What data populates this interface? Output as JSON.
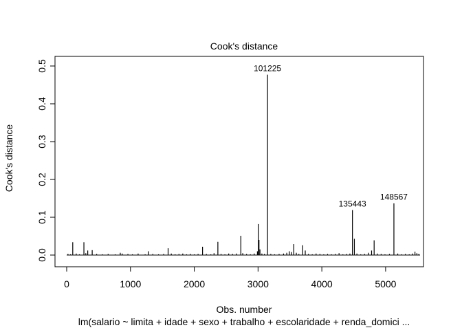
{
  "chart_data": {
    "type": "line",
    "title": "Cook's distance",
    "xlabel": "Obs. number",
    "ylabel": "Cook's distance",
    "subtitle": "lm(salario ~ limita + idade + sexo + trabalho + escolaridade + renda_domici ...",
    "xlim": [
      0,
      5540
    ],
    "ylim": [
      0,
      0.5
    ],
    "x_ticks": [
      0,
      1000,
      2000,
      3000,
      4000,
      5000
    ],
    "y_ticks": [
      0.0,
      0.1,
      0.2,
      0.3,
      0.4,
      0.5
    ],
    "grid": false,
    "style": "vertical-spikes",
    "color": "#000000",
    "spikes": [
      {
        "x": 20,
        "y": 0.003
      },
      {
        "x": 60,
        "y": 0.002
      },
      {
        "x": 95,
        "y": 0.034
      },
      {
        "x": 150,
        "y": 0.004
      },
      {
        "x": 200,
        "y": 0.002
      },
      {
        "x": 270,
        "y": 0.034
      },
      {
        "x": 300,
        "y": 0.005
      },
      {
        "x": 330,
        "y": 0.012
      },
      {
        "x": 400,
        "y": 0.013
      },
      {
        "x": 470,
        "y": 0.003
      },
      {
        "x": 560,
        "y": 0.002
      },
      {
        "x": 650,
        "y": 0.003
      },
      {
        "x": 760,
        "y": 0.002
      },
      {
        "x": 840,
        "y": 0.006
      },
      {
        "x": 870,
        "y": 0.004
      },
      {
        "x": 960,
        "y": 0.003
      },
      {
        "x": 1030,
        "y": 0.002
      },
      {
        "x": 1120,
        "y": 0.004
      },
      {
        "x": 1230,
        "y": 0.002
      },
      {
        "x": 1280,
        "y": 0.01
      },
      {
        "x": 1350,
        "y": 0.003
      },
      {
        "x": 1440,
        "y": 0.002
      },
      {
        "x": 1520,
        "y": 0.003
      },
      {
        "x": 1590,
        "y": 0.018
      },
      {
        "x": 1640,
        "y": 0.004
      },
      {
        "x": 1700,
        "y": 0.002
      },
      {
        "x": 1760,
        "y": 0.003
      },
      {
        "x": 1820,
        "y": 0.004
      },
      {
        "x": 1880,
        "y": 0.002
      },
      {
        "x": 1940,
        "y": 0.003
      },
      {
        "x": 2000,
        "y": 0.002
      },
      {
        "x": 2060,
        "y": 0.003
      },
      {
        "x": 2130,
        "y": 0.022
      },
      {
        "x": 2190,
        "y": 0.003
      },
      {
        "x": 2260,
        "y": 0.002
      },
      {
        "x": 2310,
        "y": 0.005
      },
      {
        "x": 2370,
        "y": 0.035
      },
      {
        "x": 2420,
        "y": 0.003
      },
      {
        "x": 2480,
        "y": 0.002
      },
      {
        "x": 2540,
        "y": 0.004
      },
      {
        "x": 2600,
        "y": 0.003
      },
      {
        "x": 2660,
        "y": 0.004
      },
      {
        "x": 2730,
        "y": 0.051
      },
      {
        "x": 2760,
        "y": 0.005
      },
      {
        "x": 2820,
        "y": 0.003
      },
      {
        "x": 2880,
        "y": 0.002
      },
      {
        "x": 2940,
        "y": 0.004
      },
      {
        "x": 2990,
        "y": 0.01
      },
      {
        "x": 3005,
        "y": 0.082
      },
      {
        "x": 3015,
        "y": 0.04
      },
      {
        "x": 3030,
        "y": 0.015
      },
      {
        "x": 3060,
        "y": 0.004
      },
      {
        "x": 3100,
        "y": 0.003
      },
      {
        "x": 3148,
        "y": 0.477
      },
      {
        "x": 3200,
        "y": 0.003
      },
      {
        "x": 3260,
        "y": 0.002
      },
      {
        "x": 3330,
        "y": 0.003
      },
      {
        "x": 3400,
        "y": 0.004
      },
      {
        "x": 3450,
        "y": 0.006
      },
      {
        "x": 3490,
        "y": 0.01
      },
      {
        "x": 3520,
        "y": 0.008
      },
      {
        "x": 3560,
        "y": 0.029
      },
      {
        "x": 3600,
        "y": 0.006
      },
      {
        "x": 3640,
        "y": 0.003
      },
      {
        "x": 3700,
        "y": 0.026
      },
      {
        "x": 3740,
        "y": 0.012
      },
      {
        "x": 3790,
        "y": 0.003
      },
      {
        "x": 3850,
        "y": 0.002
      },
      {
        "x": 3910,
        "y": 0.004
      },
      {
        "x": 3970,
        "y": 0.003
      },
      {
        "x": 4030,
        "y": 0.002
      },
      {
        "x": 4090,
        "y": 0.003
      },
      {
        "x": 4150,
        "y": 0.002
      },
      {
        "x": 4210,
        "y": 0.003
      },
      {
        "x": 4270,
        "y": 0.005
      },
      {
        "x": 4330,
        "y": 0.002
      },
      {
        "x": 4390,
        "y": 0.003
      },
      {
        "x": 4440,
        "y": 0.004
      },
      {
        "x": 4480,
        "y": 0.119
      },
      {
        "x": 4510,
        "y": 0.043
      },
      {
        "x": 4550,
        "y": 0.004
      },
      {
        "x": 4610,
        "y": 0.002
      },
      {
        "x": 4670,
        "y": 0.003
      },
      {
        "x": 4730,
        "y": 0.006
      },
      {
        "x": 4780,
        "y": 0.012
      },
      {
        "x": 4820,
        "y": 0.039
      },
      {
        "x": 4870,
        "y": 0.004
      },
      {
        "x": 4930,
        "y": 0.003
      },
      {
        "x": 4990,
        "y": 0.002
      },
      {
        "x": 5060,
        "y": 0.003
      },
      {
        "x": 5130,
        "y": 0.137
      },
      {
        "x": 5190,
        "y": 0.004
      },
      {
        "x": 5250,
        "y": 0.002
      },
      {
        "x": 5310,
        "y": 0.003
      },
      {
        "x": 5370,
        "y": 0.002
      },
      {
        "x": 5420,
        "y": 0.004
      },
      {
        "x": 5460,
        "y": 0.009
      },
      {
        "x": 5490,
        "y": 0.005
      },
      {
        "x": 5520,
        "y": 0.003
      }
    ],
    "annotations": [
      {
        "label": "101225",
        "x": 3148,
        "y": 0.477
      },
      {
        "label": "135443",
        "x": 4480,
        "y": 0.119
      },
      {
        "label": "148567",
        "x": 5130,
        "y": 0.137
      }
    ]
  }
}
